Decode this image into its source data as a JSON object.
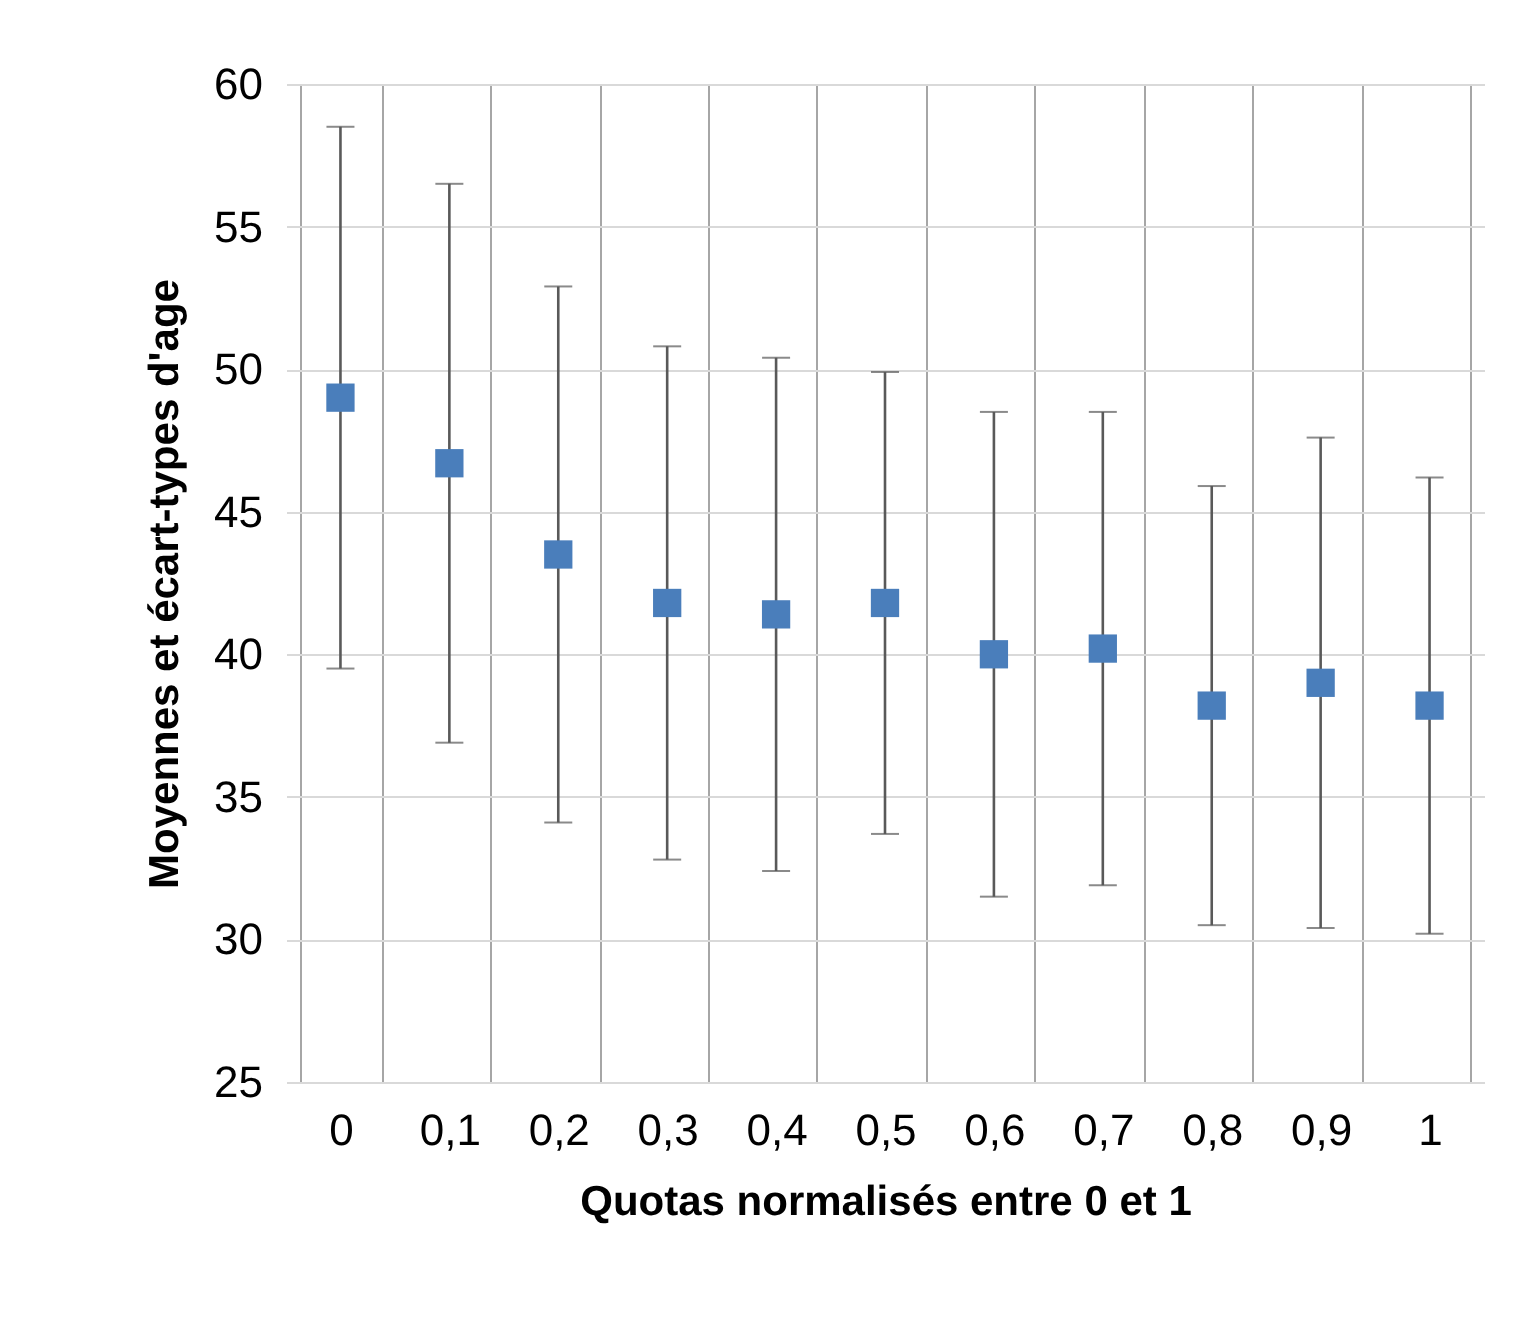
{
  "chart_data": {
    "type": "scatter",
    "xlabel": "Quotas normalisés entre 0 et 1",
    "ylabel": "Moyennes et écart-types d'age",
    "categories": [
      "0",
      "0,1",
      "0,2",
      "0,3",
      "0,4",
      "0,5",
      "0,6",
      "0,7",
      "0,8",
      "0,9",
      "1"
    ],
    "values": [
      49.0,
      46.7,
      43.5,
      41.8,
      41.4,
      41.8,
      40.0,
      40.2,
      38.2,
      39.0,
      38.2
    ],
    "errors": [
      9.5,
      9.8,
      9.4,
      9.0,
      9.0,
      8.1,
      8.5,
      8.3,
      7.7,
      8.6,
      8.0
    ],
    "color": "#4a7ebb",
    "marker": "square",
    "ylim": [
      25,
      60
    ],
    "yticks": [
      25,
      30,
      35,
      40,
      45,
      50,
      55,
      60
    ],
    "grid": true
  }
}
